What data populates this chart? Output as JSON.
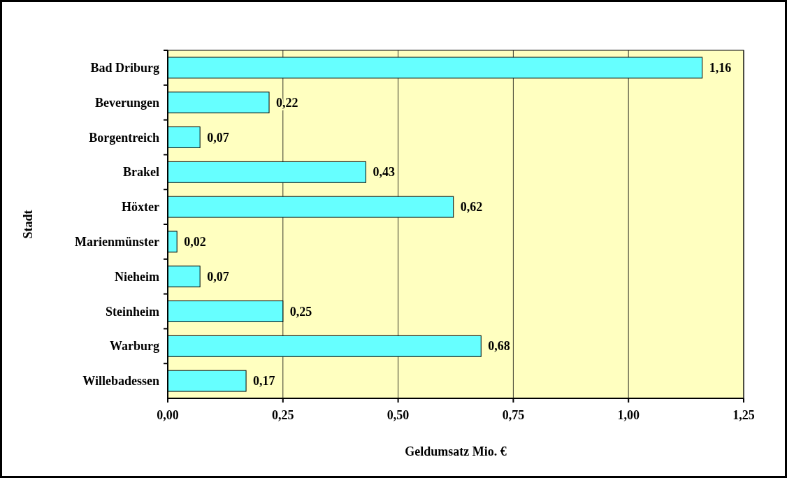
{
  "chart_data": {
    "type": "bar",
    "orientation": "horizontal",
    "xlabel": "Geldumsatz Mio. €",
    "ylabel": "Stadt",
    "categories": [
      "Bad Driburg",
      "Beverungen",
      "Borgentreich",
      "Brakel",
      "Höxter",
      "Marienmünster",
      "Nieheim",
      "Steinheim",
      "Warburg",
      "Willebadessen"
    ],
    "values": [
      1.16,
      0.22,
      0.07,
      0.43,
      0.62,
      0.02,
      0.07,
      0.25,
      0.68,
      0.17
    ],
    "value_labels": [
      "1,16",
      "0,22",
      "0,07",
      "0,43",
      "0,62",
      "0,02",
      "0,07",
      "0,25",
      "0,68",
      "0,17"
    ],
    "color": "#66ffff",
    "xlim": [
      0,
      1.25
    ],
    "xticks": [
      {
        "value": 0,
        "label": "0,00"
      },
      {
        "value": 0.25,
        "label": "0,25"
      },
      {
        "value": 0.5,
        "label": "0,50"
      },
      {
        "value": 0.75,
        "label": "0,75"
      },
      {
        "value": 1,
        "label": "1,00"
      },
      {
        "value": 1.25,
        "label": "1,25"
      }
    ],
    "grid": "x"
  }
}
